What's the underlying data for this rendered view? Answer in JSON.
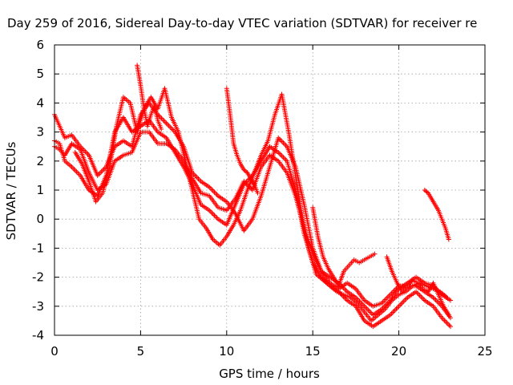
{
  "chart_data": {
    "type": "scatter",
    "title": "Day 259 of 2016, Sidereal Day-to-day VTEC variation (SDTVAR) for receiver re",
    "xlabel": "GPS time / hours",
    "ylabel": "SDTVAR / TECUs",
    "xlim": [
      0,
      25
    ],
    "ylim": [
      -4,
      6
    ],
    "xticks": [
      "0",
      "5",
      "10",
      "15",
      "20",
      "25"
    ],
    "yticks": [
      "-4",
      "-3",
      "-2",
      "-1",
      "0",
      "1",
      "2",
      "3",
      "4",
      "5",
      "6"
    ],
    "grid": true,
    "legend": "none",
    "marker": "+",
    "color": "#ff0000",
    "series": [
      {
        "x": [
          0.0,
          0.3,
          0.6,
          1.0,
          1.5,
          2.0,
          2.5,
          3.0,
          3.5,
          4.0,
          4.5,
          5.0,
          5.5,
          6.0,
          6.5,
          7.0,
          7.5,
          8.0,
          8.5,
          9.0,
          9.5,
          10.0,
          10.5,
          11.0,
          11.5,
          12.0,
          12.5,
          13.0,
          13.5,
          14.0,
          14.5,
          15.0,
          15.5,
          16.0,
          16.5,
          17.0,
          17.5,
          18.0,
          18.5,
          19.0,
          19.5,
          20.0,
          20.5,
          21.0,
          21.5,
          22.0,
          22.5,
          23.0
        ],
        "y": [
          2.7,
          2.6,
          2.0,
          1.8,
          1.5,
          1.0,
          0.8,
          1.5,
          3.0,
          3.5,
          3.0,
          3.2,
          3.4,
          3.0,
          2.8,
          2.3,
          1.8,
          1.2,
          0.5,
          0.3,
          0.0,
          -0.2,
          0.5,
          1.2,
          1.5,
          2.0,
          2.5,
          2.3,
          2.0,
          1.0,
          -0.5,
          -1.5,
          -2.0,
          -2.3,
          -2.5,
          -2.8,
          -3.0,
          -3.5,
          -3.7,
          -3.5,
          -3.3,
          -3.0,
          -2.7,
          -2.5,
          -2.8,
          -3.0,
          -3.4,
          -3.7
        ]
      },
      {
        "x": [
          0.0,
          0.3,
          0.6,
          1.0,
          1.5,
          2.0,
          2.5,
          3.0,
          3.5,
          4.0,
          4.5,
          5.0,
          5.5,
          6.0,
          6.5,
          7.0,
          7.5,
          8.0,
          8.5,
          9.0,
          9.5,
          10.0,
          10.5,
          11.0,
          11.5,
          12.0,
          12.5,
          13.0,
          13.5,
          14.0,
          14.5,
          15.0,
          15.5,
          16.0,
          16.5,
          17.0,
          17.5,
          18.0,
          18.5,
          19.0,
          19.5,
          20.0,
          20.5,
          21.0,
          21.5,
          22.0,
          22.5,
          23.0
        ],
        "y": [
          3.6,
          3.2,
          2.8,
          2.9,
          2.5,
          2.2,
          1.5,
          1.8,
          2.5,
          2.7,
          2.5,
          3.6,
          4.0,
          3.6,
          3.3,
          3.0,
          2.5,
          1.6,
          1.3,
          1.1,
          0.8,
          0.6,
          0.2,
          -0.4,
          0.0,
          0.8,
          1.8,
          2.8,
          2.5,
          1.8,
          0.5,
          -1.0,
          -1.8,
          -2.0,
          -2.2,
          -2.5,
          -2.7,
          -3.0,
          -3.3,
          -3.1,
          -2.8,
          -2.4,
          -2.2,
          -2.0,
          -2.2,
          -2.3,
          -2.6,
          -2.8
        ]
      },
      {
        "x": [
          0.0,
          0.3,
          0.6,
          1.0,
          1.5,
          2.0,
          2.5,
          3.0,
          3.5,
          4.0,
          4.5,
          5.0,
          5.5,
          6.0,
          6.5,
          7.0,
          7.5,
          8.0,
          8.5,
          9.0,
          9.5,
          10.0,
          10.5,
          11.0,
          11.5,
          12.0,
          12.5,
          13.0,
          13.5,
          14.0,
          14.5,
          15.0,
          15.5,
          16.0,
          16.5,
          17.0,
          17.5,
          18.0,
          18.5,
          19.0,
          19.5,
          20.0,
          20.5,
          21.0,
          21.5,
          22.0,
          22.5,
          23.0
        ],
        "y": [
          2.5,
          2.4,
          2.2,
          2.6,
          2.4,
          1.6,
          1.0,
          1.2,
          2.0,
          2.2,
          2.3,
          3.0,
          3.0,
          2.6,
          2.6,
          2.4,
          2.0,
          1.4,
          0.9,
          0.8,
          0.4,
          0.3,
          0.7,
          1.3,
          1.0,
          1.8,
          2.2,
          2.0,
          1.6,
          0.8,
          -0.3,
          -1.2,
          -1.8,
          -2.2,
          -2.4,
          -2.2,
          -2.4,
          -2.8,
          -3.0,
          -2.9,
          -2.6,
          -2.3,
          -2.3,
          -2.3,
          -2.5,
          -2.7,
          -3.0,
          -3.4
        ]
      },
      {
        "x": [
          1.2,
          1.6,
          2.0,
          2.4,
          2.8,
          3.2,
          3.6,
          4.0,
          4.4,
          4.8,
          5.2,
          5.6,
          6.0,
          6.4,
          6.8,
          7.2,
          7.6,
          8.0,
          8.4,
          8.8,
          9.2,
          9.6,
          10.0,
          10.4,
          10.8,
          11.2,
          11.6,
          12.0,
          12.4,
          12.8,
          13.2,
          13.6,
          14.0,
          14.4,
          14.8,
          15.2,
          15.6,
          16.0,
          16.4,
          16.8,
          17.2,
          17.6,
          18.0,
          18.4,
          18.8,
          19.2,
          19.6,
          20.0,
          20.4,
          20.8,
          21.2,
          21.6,
          22.0,
          22.4,
          22.8
        ],
        "y": [
          2.3,
          1.9,
          1.3,
          0.6,
          0.9,
          1.8,
          3.2,
          4.2,
          4.0,
          3.0,
          3.8,
          4.2,
          3.8,
          4.5,
          3.5,
          3.0,
          2.0,
          1.0,
          0.0,
          -0.3,
          -0.7,
          -0.9,
          -0.6,
          -0.2,
          0.3,
          1.0,
          1.6,
          2.2,
          2.7,
          3.6,
          4.3,
          3.0,
          1.5,
          0.0,
          -1.1,
          -1.9,
          -2.1,
          -2.3,
          -2.5,
          -2.6,
          -2.7,
          -2.9,
          -3.2,
          -3.5,
          -3.3,
          -3.1,
          -2.8,
          -2.6,
          -2.5,
          -2.3,
          -2.2,
          -2.3,
          -2.4,
          -2.5,
          -2.7
        ]
      },
      {
        "x": [
          4.8,
          5.0,
          5.2,
          5.4,
          5.6,
          5.8,
          6.0,
          6.2
        ],
        "y": [
          5.3,
          4.6,
          3.8,
          3.2,
          3.6,
          3.9,
          3.4,
          3.1
        ]
      },
      {
        "x": [
          10.0,
          10.2,
          10.4,
          10.6,
          10.8,
          11.0,
          11.2,
          11.4,
          11.6,
          11.8
        ],
        "y": [
          4.5,
          3.6,
          2.6,
          2.2,
          1.9,
          1.7,
          1.6,
          1.4,
          1.2,
          0.9
        ]
      },
      {
        "x": [
          15.0,
          15.3,
          15.6,
          15.9,
          16.2,
          16.5,
          16.8,
          17.1,
          17.4,
          17.7,
          18.0,
          18.3,
          18.6
        ],
        "y": [
          0.4,
          -0.6,
          -1.3,
          -1.7,
          -2.0,
          -2.3,
          -1.8,
          -1.6,
          -1.4,
          -1.5,
          -1.4,
          -1.3,
          -1.2
        ]
      },
      {
        "x": [
          19.3,
          19.6,
          19.9,
          20.2,
          20.5,
          20.8,
          21.1,
          21.4,
          21.7,
          22.0,
          22.3,
          22.6,
          22.9
        ],
        "y": [
          -1.3,
          -1.8,
          -2.2,
          -2.5,
          -2.3,
          -2.1,
          -2.2,
          -2.4,
          -2.5,
          -2.2,
          -2.6,
          -3.0,
          -3.3
        ]
      },
      {
        "x": [
          21.5,
          21.7,
          21.9,
          22.1,
          22.3,
          22.5,
          22.7,
          22.9
        ],
        "y": [
          1.0,
          0.9,
          0.7,
          0.5,
          0.3,
          0.0,
          -0.3,
          -0.7
        ]
      }
    ]
  }
}
